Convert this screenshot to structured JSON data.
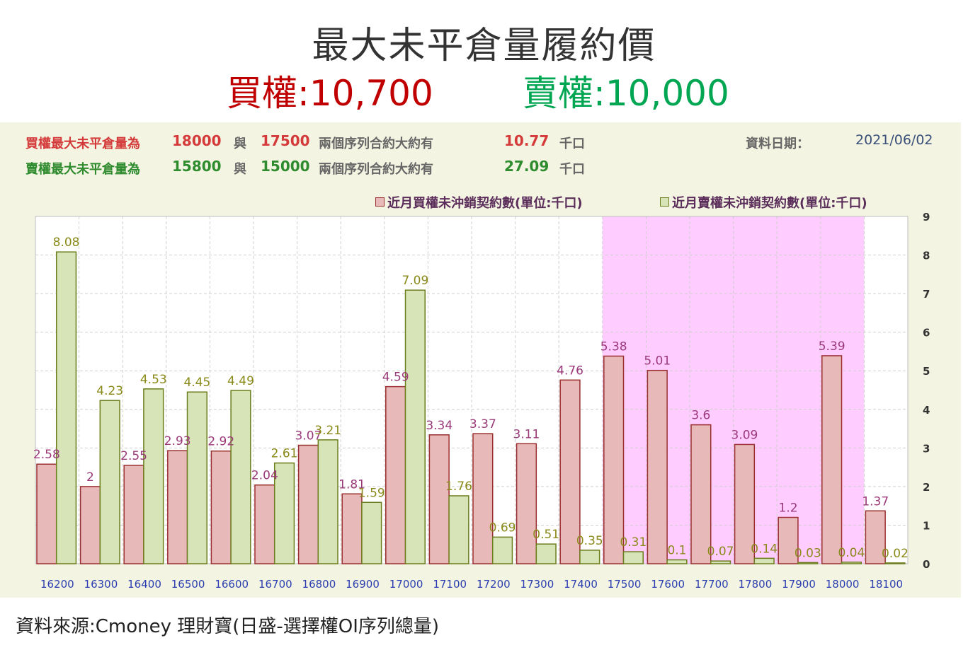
{
  "header": {
    "title": "最大未平倉量履約價",
    "call_label": "買權:10,700",
    "put_label": "賣權:10,000"
  },
  "info": {
    "call_line": {
      "prefix": "買權最大未平倉量為",
      "strike1": "18000",
      "conj": "與",
      "strike2": "17500",
      "desc": "兩個序列合約大約有",
      "value": "10.77",
      "unit": "千口"
    },
    "put_line": {
      "prefix": "賣權最大未平倉量為",
      "strike1": "15800",
      "conj": "與",
      "strike2": "15000",
      "desc": "兩個序列合約大約有",
      "value": "27.09",
      "unit": "千口"
    },
    "date_label": "資料日期：",
    "date_value": "2021/06/02"
  },
  "source": "資料來源:Cmoney 理財寶(日盛-選擇權OI序列總量)",
  "colors": {
    "call_fill": "#e8b9b9",
    "call_stroke": "#9a2f2f",
    "call_label": "#9b3a7a",
    "put_fill": "#d6e4b8",
    "put_stroke": "#6b7d1c",
    "put_label": "#8a8a1a",
    "highlight": "#ffccff",
    "axis_x_label": "#2a3fb0"
  },
  "chart_data": {
    "type": "bar",
    "categories": [
      "16200",
      "16300",
      "16400",
      "16500",
      "16600",
      "16700",
      "16800",
      "16900",
      "17000",
      "17100",
      "17200",
      "17300",
      "17400",
      "17500",
      "17600",
      "17700",
      "17800",
      "17900",
      "18000",
      "18100"
    ],
    "series": [
      {
        "name": "近月買權未沖銷契約數(單位:千口)",
        "values": [
          2.58,
          2,
          2.55,
          2.93,
          2.92,
          2.04,
          3.07,
          1.81,
          4.59,
          3.34,
          3.37,
          3.11,
          4.76,
          5.38,
          5.01,
          3.6,
          3.09,
          1.2,
          5.39,
          1.37
        ]
      },
      {
        "name": "近月賣權未沖銷契約數(單位:千口)",
        "values": [
          8.08,
          4.23,
          4.53,
          4.45,
          4.49,
          2.61,
          3.21,
          1.59,
          7.09,
          1.76,
          0.69,
          0.51,
          0.35,
          0.31,
          0.1,
          0.07,
          0.14,
          0.03,
          0.04,
          0.02
        ]
      }
    ],
    "data_labels": {
      "call": [
        "2.58",
        "2",
        "2.55",
        "2.93",
        "2.92",
        "2.04",
        "3.07",
        "1.81",
        "4.59",
        "3.34",
        "3.37",
        "3.11",
        "4.76",
        "5.38",
        "5.01",
        "3.6",
        "3.09",
        "1.2",
        "5.39",
        "1.37"
      ],
      "put": [
        "8.08",
        "4.23",
        "4.53",
        "4.45",
        "4.49",
        "2.61",
        "3.21",
        "1.59",
        "7.09",
        "1.76",
        "0.69",
        "0.51",
        "0.35",
        "0.31",
        "0.1",
        "0.07",
        "0.14",
        "0.03",
        "0.04",
        "0.02"
      ]
    },
    "ylim": [
      0,
      9
    ],
    "yticks": [
      "0",
      "1",
      "2",
      "3",
      "4",
      "5",
      "6",
      "7",
      "8",
      "9"
    ],
    "highlight_range": [
      "17500",
      "18000"
    ],
    "grid": true,
    "legend_position": "top-right"
  }
}
